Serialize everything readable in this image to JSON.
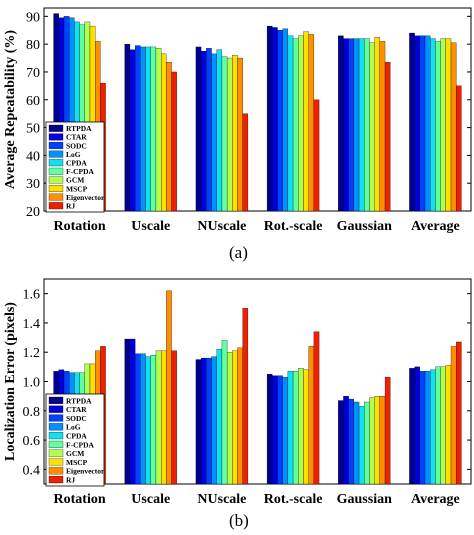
{
  "captions": {
    "a": "(a)",
    "b": "(b)"
  },
  "colors": [
    "#00008f",
    "#0000df",
    "#0040ff",
    "#0090ff",
    "#10e0ef",
    "#60ff9f",
    "#b0ff50",
    "#ffdf00",
    "#ff8f00",
    "#ef2000",
    "#8f0000"
  ],
  "chart_data": [
    {
      "type": "bar",
      "title": "",
      "xlabel": "",
      "ylabel": "Average Repeatability (%)",
      "ylim": [
        20,
        93
      ],
      "yticks": [
        20,
        30,
        40,
        50,
        60,
        70,
        80,
        90
      ],
      "grid": false,
      "legend_position": "bottom-left",
      "categories": [
        "Rotation",
        "Uscale",
        "NUscale",
        "Rot.-scale",
        "Gaussian",
        "Average"
      ],
      "series": [
        {
          "name": "RTPDA",
          "values": [
            91,
            80,
            79,
            86.5,
            83,
            84
          ]
        },
        {
          "name": "CTAR",
          "values": [
            89.5,
            78,
            77.5,
            86,
            82,
            83
          ]
        },
        {
          "name": "SODC",
          "values": [
            90,
            79.5,
            78.5,
            85,
            82,
            83
          ]
        },
        {
          "name": "LoG",
          "values": [
            89.5,
            79,
            76.5,
            85.5,
            82,
            83
          ]
        },
        {
          "name": "CPDA",
          "values": [
            88,
            79,
            78,
            83,
            82,
            82
          ]
        },
        {
          "name": "F-CPDA",
          "values": [
            87,
            79,
            75.5,
            82,
            82,
            81
          ]
        },
        {
          "name": "GCM",
          "values": [
            88,
            78.5,
            75,
            83,
            80.5,
            82
          ]
        },
        {
          "name": "MSCP",
          "values": [
            86.5,
            76.5,
            76,
            84.5,
            82.5,
            82
          ]
        },
        {
          "name": "Eigenvector",
          "values": [
            81,
            73.5,
            75,
            83.5,
            81,
            80.5
          ]
        },
        {
          "name": "RJ",
          "values": [
            66,
            70,
            55,
            60,
            73.5,
            65
          ]
        }
      ]
    },
    {
      "type": "bar",
      "title": "",
      "xlabel": "",
      "ylabel": "Localization Error (pixels)",
      "ylim": [
        0.3,
        1.7
      ],
      "yticks": [
        0.4,
        0.6,
        0.8,
        1.0,
        1.2,
        1.4,
        1.6
      ],
      "grid": false,
      "legend_position": "bottom-left",
      "categories": [
        "Rotation",
        "Uscale",
        "NUscale",
        "Rot.-scale",
        "Gaussian",
        "Average"
      ],
      "series": [
        {
          "name": "RTPDA",
          "values": [
            1.07,
            1.29,
            1.15,
            1.05,
            0.87,
            1.09
          ]
        },
        {
          "name": "CTAR",
          "values": [
            1.08,
            1.29,
            1.16,
            1.04,
            0.9,
            1.1
          ]
        },
        {
          "name": "SODC",
          "values": [
            1.07,
            1.19,
            1.16,
            1.04,
            0.88,
            1.07
          ]
        },
        {
          "name": "LoG",
          "values": [
            1.06,
            1.19,
            1.17,
            1.03,
            0.86,
            1.07
          ]
        },
        {
          "name": "CPDA",
          "values": [
            1.06,
            1.17,
            1.22,
            1.07,
            0.83,
            1.08
          ]
        },
        {
          "name": "F-CPDA",
          "values": [
            1.06,
            1.18,
            1.28,
            1.07,
            0.86,
            1.1
          ]
        },
        {
          "name": "GCM",
          "values": [
            1.12,
            1.21,
            1.2,
            1.09,
            0.89,
            1.1
          ]
        },
        {
          "name": "MSCP",
          "values": [
            1.12,
            1.21,
            1.21,
            1.08,
            0.9,
            1.11
          ]
        },
        {
          "name": "Eigenvector",
          "values": [
            1.21,
            1.62,
            1.23,
            1.24,
            0.9,
            1.24
          ]
        },
        {
          "name": "RJ",
          "values": [
            1.24,
            1.21,
            1.5,
            1.34,
            1.03,
            1.27
          ]
        }
      ]
    }
  ]
}
